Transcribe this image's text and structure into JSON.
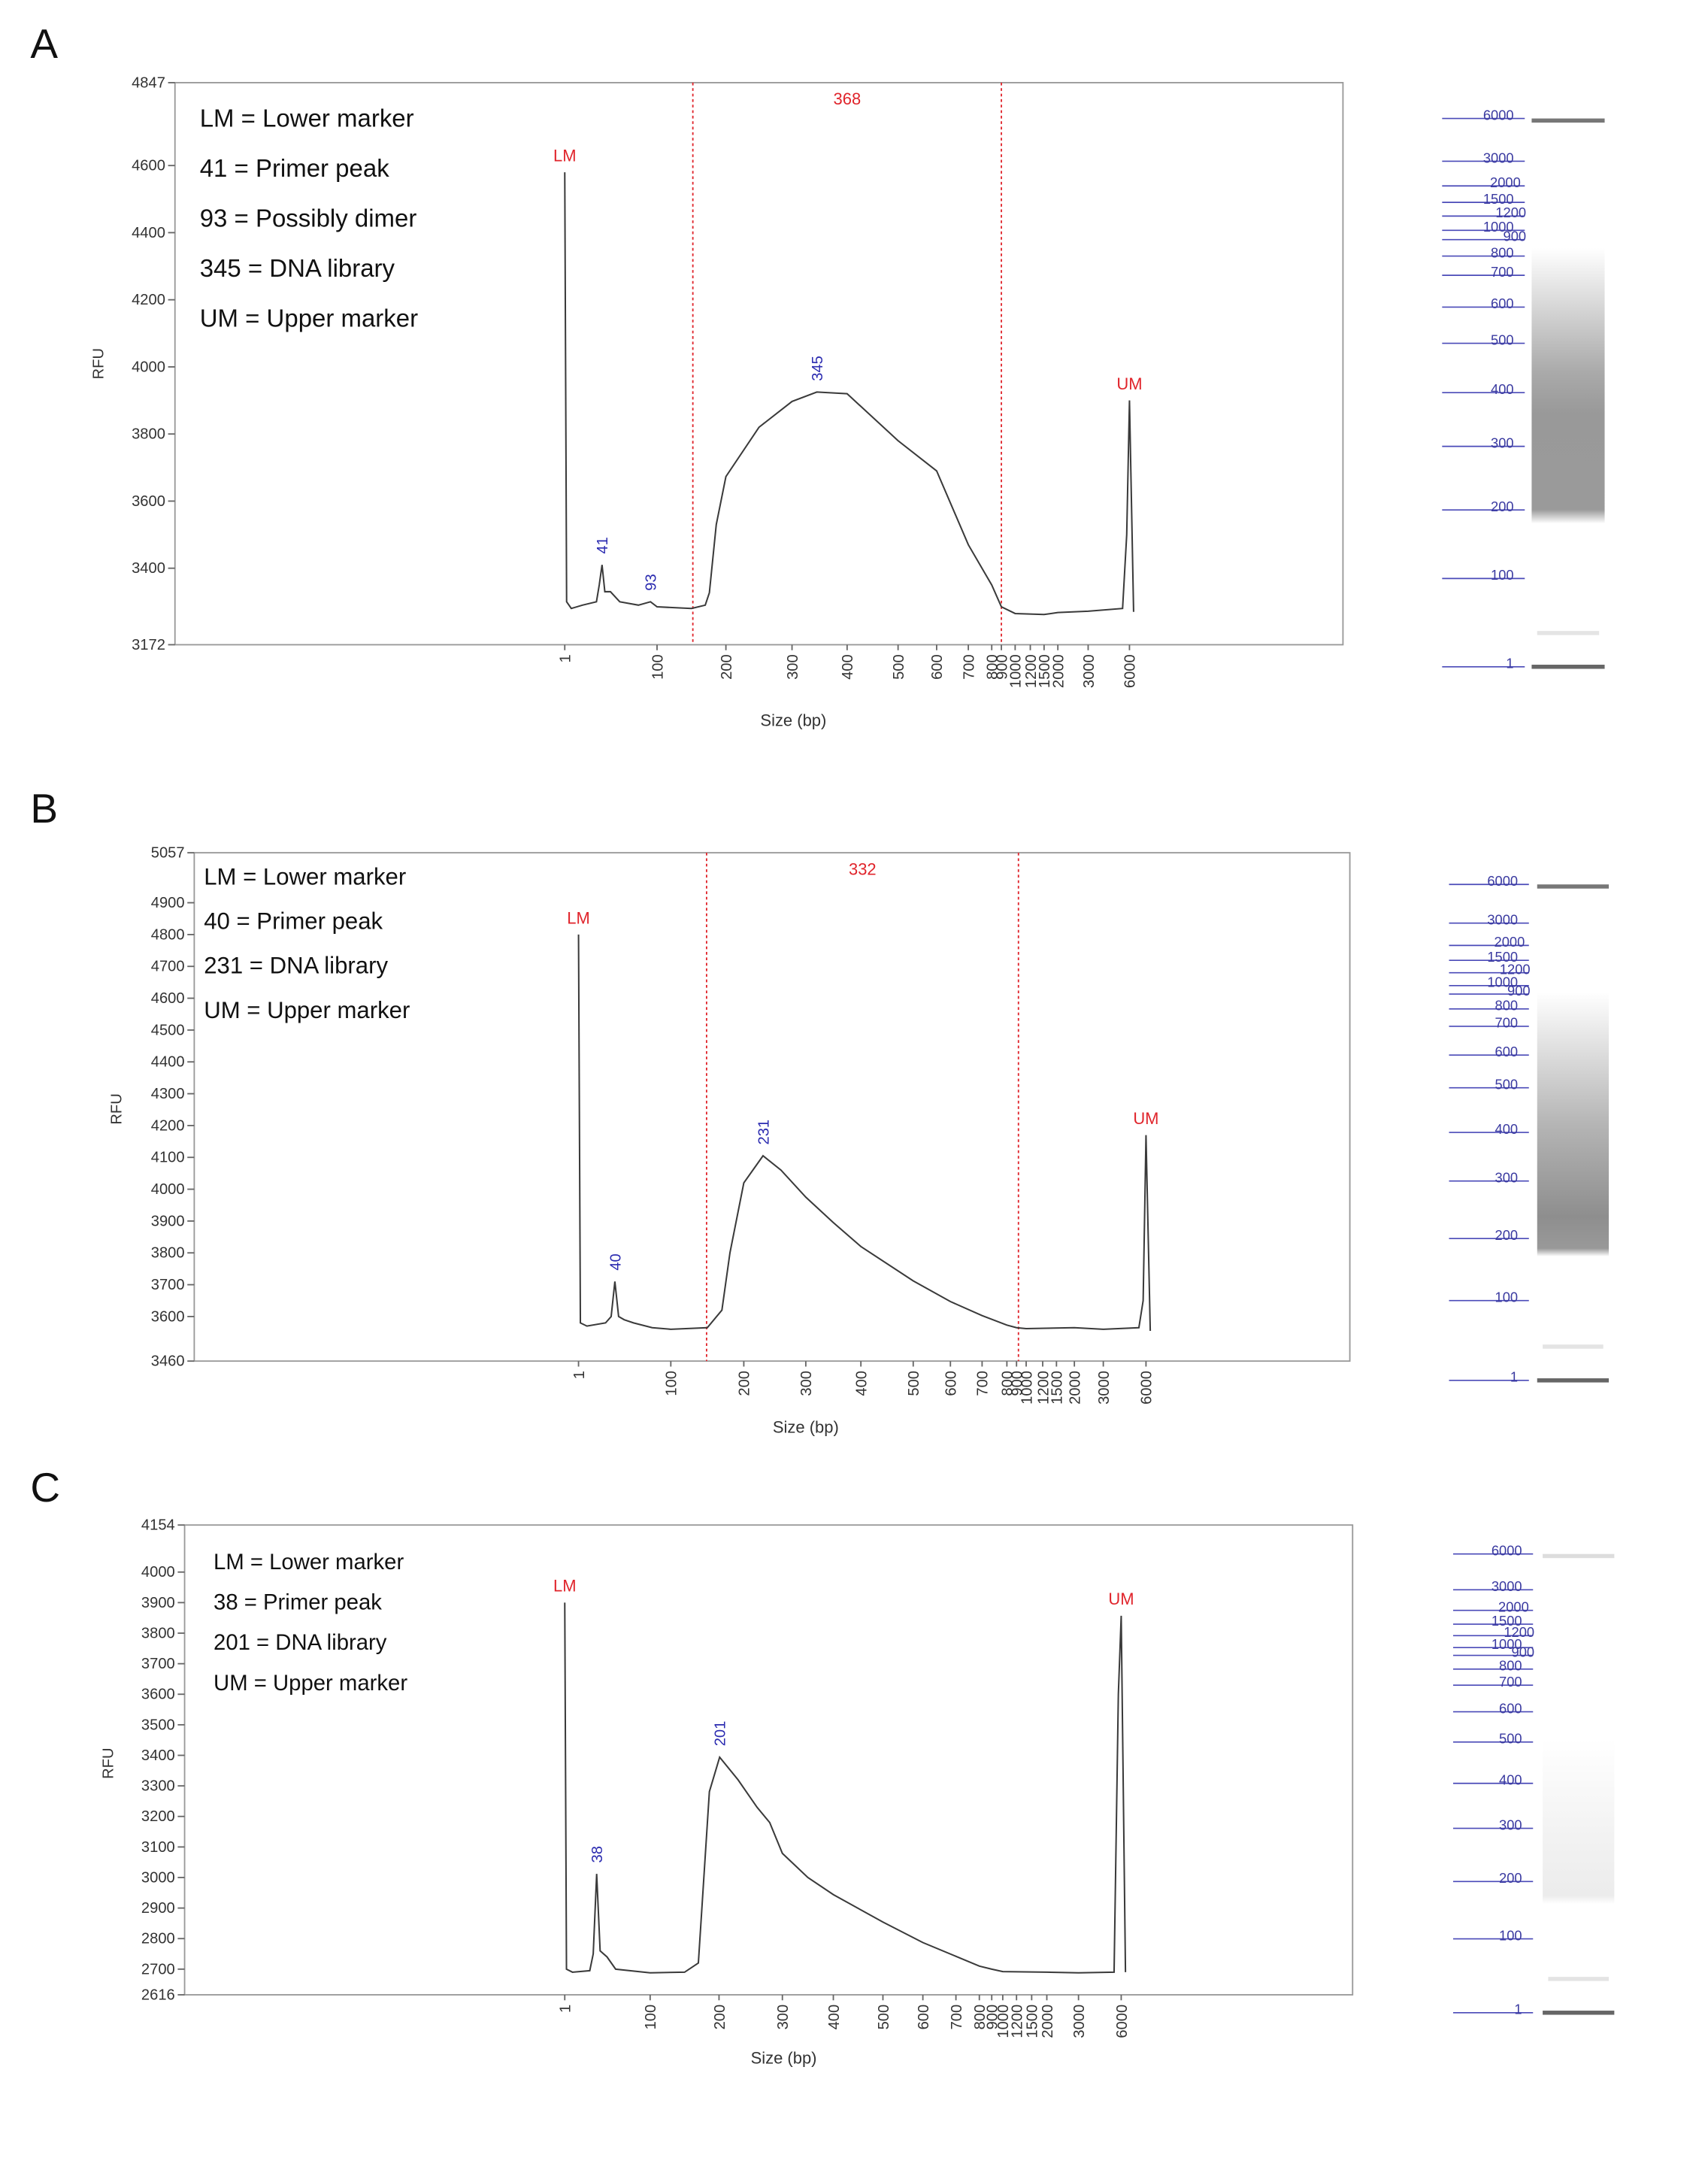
{
  "chart_data": [
    {
      "type": "line",
      "panel": "A",
      "notes": [
        "LM = Lower marker",
        "41 = Primer peak",
        "93 = Possibly dimer",
        "345 = DNA library",
        "UM = Upper marker"
      ],
      "y_label": "RFU",
      "x_label": "Size (bp)",
      "ylim": [
        3172,
        4847
      ],
      "yticks": [
        3172,
        3400,
        3600,
        3800,
        4000,
        4200,
        4400,
        4600,
        4847
      ],
      "xticks": [
        1,
        100,
        200,
        300,
        400,
        500,
        600,
        700,
        800,
        900,
        1000,
        1200,
        1500,
        2000,
        3000,
        6000
      ],
      "x": [
        1,
        3,
        8,
        20,
        35,
        38,
        41,
        44,
        50,
        60,
        80,
        93,
        100,
        150,
        170,
        176,
        186,
        200,
        250,
        300,
        345,
        400,
        500,
        600,
        700,
        800,
        900,
        1000,
        1500,
        2000,
        3000,
        5500,
        5800,
        6000,
        6300
      ],
      "values": [
        4580,
        3300,
        3280,
        3290,
        3300,
        3350,
        3410,
        3330,
        3330,
        3300,
        3290,
        3300,
        3285,
        3280,
        3290,
        3327,
        3530,
        3673,
        3820,
        3897,
        3925,
        3920,
        3780,
        3690,
        3470,
        3350,
        3285,
        3265,
        3262,
        3268,
        3272,
        3280,
        3500,
        3900,
        3270
      ],
      "color": "#3a3a3a",
      "peaks": [
        {
          "label": "LM",
          "x": 1,
          "y": 4580,
          "color": "#e0242b",
          "orientation": "horizontal"
        },
        {
          "label": "41",
          "x": 41,
          "y": 3410,
          "color": "#2b2bb0",
          "orientation": "vertical"
        },
        {
          "label": "93",
          "x": 93,
          "y": 3300,
          "color": "#2b2bb0",
          "orientation": "vertical"
        },
        {
          "label": "345",
          "x": 345,
          "y": 3925,
          "color": "#2b2bb0",
          "orientation": "vertical"
        },
        {
          "label": "UM",
          "x": 6000,
          "y": 3900,
          "color": "#e0242b",
          "orientation": "horizontal"
        }
      ],
      "region": {
        "label": "368",
        "from": 152,
        "to": 900,
        "color": "#e0242b"
      },
      "gel_ladder": [
        6000,
        3000,
        2000,
        1500,
        1200,
        1000,
        900,
        800,
        700,
        600,
        500,
        400,
        300,
        200,
        100,
        1
      ]
    },
    {
      "type": "line",
      "panel": "B",
      "notes": [
        "LM = Lower marker",
        "40 = Primer peak",
        "231 = DNA library",
        "UM = Upper marker"
      ],
      "y_label": "RFU",
      "x_label": "Size (bp)",
      "ylim": [
        3460,
        5057
      ],
      "yticks": [
        3460,
        3600,
        3700,
        3800,
        3900,
        4000,
        4100,
        4200,
        4300,
        4400,
        4500,
        4600,
        4700,
        4800,
        4900,
        5057
      ],
      "xticks": [
        1,
        100,
        200,
        300,
        400,
        500,
        600,
        700,
        800,
        900,
        1000,
        1200,
        1500,
        2000,
        3000,
        6000
      ],
      "x": [
        1,
        3,
        10,
        30,
        36,
        40,
        44,
        50,
        60,
        80,
        100,
        150,
        170,
        181,
        200,
        231,
        260,
        300,
        350,
        400,
        500,
        600,
        700,
        800,
        900,
        1000,
        2000,
        3000,
        5500,
        5800,
        6000,
        6300
      ],
      "values": [
        4800,
        3580,
        3570,
        3580,
        3600,
        3710,
        3600,
        3590,
        3580,
        3565,
        3560,
        3565,
        3620,
        3800,
        4020,
        4105,
        4060,
        3975,
        3895,
        3820,
        3712,
        3647,
        3603,
        3573,
        3565,
        3562,
        3565,
        3560,
        3565,
        3650,
        4170,
        3555
      ],
      "color": "#3a3a3a",
      "peaks": [
        {
          "label": "LM",
          "x": 1,
          "y": 4800,
          "color": "#e0242b",
          "orientation": "horizontal"
        },
        {
          "label": "40",
          "x": 40,
          "y": 3710,
          "color": "#2b2bb0",
          "orientation": "vertical"
        },
        {
          "label": "231",
          "x": 231,
          "y": 4105,
          "color": "#2b2bb0",
          "orientation": "vertical"
        },
        {
          "label": "UM",
          "x": 6000,
          "y": 4170,
          "color": "#e0242b",
          "orientation": "horizontal"
        }
      ],
      "region": {
        "label": "332",
        "from": 149,
        "to": 920,
        "color": "#e0242b"
      },
      "gel_ladder": [
        6000,
        3000,
        2000,
        1500,
        1200,
        1000,
        900,
        800,
        700,
        600,
        500,
        400,
        300,
        200,
        100,
        1
      ]
    },
    {
      "type": "line",
      "panel": "C",
      "notes": [
        "LM = Lower marker",
        "38 = Primer peak",
        "201 = DNA library",
        "UM = Upper marker"
      ],
      "y_label": "RFU",
      "x_label": "Size (bp)",
      "ylim": [
        2616,
        4154
      ],
      "yticks": [
        2616,
        2700,
        2800,
        2900,
        3000,
        3100,
        3200,
        3300,
        3400,
        3500,
        3600,
        3700,
        3800,
        3900,
        4000,
        4154
      ],
      "xticks": [
        1,
        100,
        200,
        300,
        400,
        500,
        600,
        700,
        800,
        900,
        1000,
        1200,
        1500,
        2000,
        3000,
        6000
      ],
      "x": [
        1,
        3,
        10,
        30,
        34,
        38,
        42,
        50,
        60,
        100,
        150,
        170,
        186,
        201,
        230,
        260,
        280,
        300,
        350,
        400,
        500,
        600,
        700,
        800,
        900,
        1000,
        2000,
        3000,
        5500,
        5800,
        6000,
        6300
      ],
      "values": [
        3900,
        2700,
        2690,
        2695,
        2750,
        3012,
        2760,
        2740,
        2700,
        2688,
        2690,
        2720,
        3281,
        3394,
        3320,
        3230,
        3180,
        3079,
        3000,
        2944,
        2854,
        2787,
        2742,
        2710,
        2700,
        2692,
        2690,
        2688,
        2690,
        3600,
        3857,
        2690
      ],
      "color": "#3a3a3a",
      "peaks": [
        {
          "label": "LM",
          "x": 1,
          "y": 3900,
          "color": "#e0242b",
          "orientation": "horizontal"
        },
        {
          "label": "38",
          "x": 38,
          "y": 3012,
          "color": "#2b2bb0",
          "orientation": "vertical"
        },
        {
          "label": "201",
          "x": 201,
          "y": 3394,
          "color": "#2b2bb0",
          "orientation": "vertical"
        },
        {
          "label": "UM",
          "x": 6000,
          "y": 3857,
          "color": "#e0242b",
          "orientation": "horizontal"
        }
      ],
      "gel_ladder": [
        6000,
        3000,
        2000,
        1500,
        1200,
        1000,
        900,
        800,
        700,
        600,
        500,
        400,
        300,
        200,
        100,
        1
      ]
    }
  ]
}
